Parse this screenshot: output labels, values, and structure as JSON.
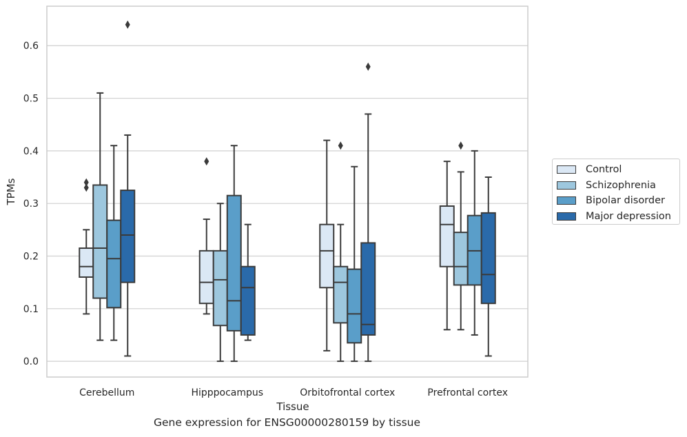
{
  "chart_data": {
    "type": "box",
    "title": "",
    "caption": "Gene expression for ENSG00000280159 by tissue",
    "xlabel": "Tissue",
    "ylabel": "TPMs",
    "ylim": [
      -0.03,
      0.675
    ],
    "yticks": [
      "0.0",
      "0.1",
      "0.2",
      "0.3",
      "0.4",
      "0.5",
      "0.6"
    ],
    "grid": true,
    "legend_position": "right",
    "categories": [
      "Cerebellum",
      "Hipppocampus",
      "Orbitofrontal cortex",
      "Prefrontal cortex"
    ],
    "series": [
      {
        "name": "Control",
        "color": "#dbe8f5",
        "boxes": [
          {
            "whisker_low": 0.09,
            "q1": 0.16,
            "median": 0.18,
            "q3": 0.215,
            "whisker_high": 0.25,
            "outliers": [
              0.33,
              0.34
            ]
          },
          {
            "whisker_low": 0.09,
            "q1": 0.11,
            "median": 0.15,
            "q3": 0.21,
            "whisker_high": 0.27,
            "outliers": [
              0.38
            ]
          },
          {
            "whisker_low": 0.02,
            "q1": 0.14,
            "median": 0.21,
            "q3": 0.26,
            "whisker_high": 0.42,
            "outliers": []
          },
          {
            "whisker_low": 0.06,
            "q1": 0.18,
            "median": 0.26,
            "q3": 0.295,
            "whisker_high": 0.38,
            "outliers": []
          }
        ]
      },
      {
        "name": "Schizophrenia",
        "color": "#9dc7de",
        "boxes": [
          {
            "whisker_low": 0.04,
            "q1": 0.12,
            "median": 0.215,
            "q3": 0.335,
            "whisker_high": 0.51,
            "outliers": []
          },
          {
            "whisker_low": 0.0,
            "q1": 0.068,
            "median": 0.155,
            "q3": 0.21,
            "whisker_high": 0.3,
            "outliers": []
          },
          {
            "whisker_low": 0.0,
            "q1": 0.073,
            "median": 0.15,
            "q3": 0.18,
            "whisker_high": 0.26,
            "outliers": [
              0.41
            ]
          },
          {
            "whisker_low": 0.06,
            "q1": 0.145,
            "median": 0.18,
            "q3": 0.245,
            "whisker_high": 0.36,
            "outliers": [
              0.41
            ]
          }
        ]
      },
      {
        "name": "Bipolar disorder",
        "color": "#5a9ec9",
        "boxes": [
          {
            "whisker_low": 0.04,
            "q1": 0.102,
            "median": 0.195,
            "q3": 0.268,
            "whisker_high": 0.41,
            "outliers": []
          },
          {
            "whisker_low": 0.0,
            "q1": 0.058,
            "median": 0.115,
            "q3": 0.315,
            "whisker_high": 0.41,
            "outliers": []
          },
          {
            "whisker_low": 0.0,
            "q1": 0.035,
            "median": 0.09,
            "q3": 0.175,
            "whisker_high": 0.37,
            "outliers": []
          },
          {
            "whisker_low": 0.05,
            "q1": 0.145,
            "median": 0.21,
            "q3": 0.277,
            "whisker_high": 0.4,
            "outliers": []
          }
        ]
      },
      {
        "name": "Major depression",
        "color": "#2a6aaa",
        "boxes": [
          {
            "whisker_low": 0.01,
            "q1": 0.15,
            "median": 0.24,
            "q3": 0.325,
            "whisker_high": 0.43,
            "outliers": [
              0.64
            ]
          },
          {
            "whisker_low": 0.04,
            "q1": 0.05,
            "median": 0.14,
            "q3": 0.18,
            "whisker_high": 0.26,
            "outliers": []
          },
          {
            "whisker_low": 0.0,
            "q1": 0.05,
            "median": 0.07,
            "q3": 0.225,
            "whisker_high": 0.47,
            "outliers": [
              0.56
            ]
          },
          {
            "whisker_low": 0.01,
            "q1": 0.11,
            "median": 0.165,
            "q3": 0.282,
            "whisker_high": 0.35,
            "outliers": []
          }
        ]
      }
    ]
  }
}
